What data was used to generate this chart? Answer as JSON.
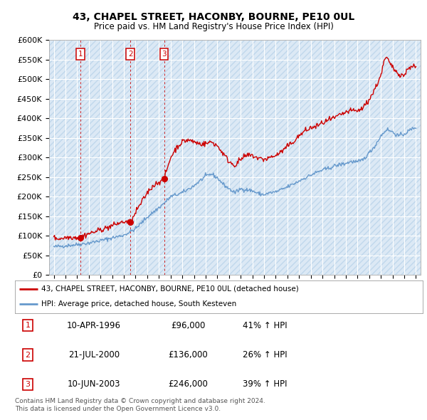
{
  "title": "43, CHAPEL STREET, HACONBY, BOURNE, PE10 0UL",
  "subtitle": "Price paid vs. HM Land Registry's House Price Index (HPI)",
  "legend_label_red": "43, CHAPEL STREET, HACONBY, BOURNE, PE10 0UL (detached house)",
  "legend_label_blue": "HPI: Average price, detached house, South Kesteven",
  "footer": "Contains HM Land Registry data © Crown copyright and database right 2024.\nThis data is licensed under the Open Government Licence v3.0.",
  "purchases": [
    {
      "label": "1",
      "date_num": 1996.27,
      "price": 96000,
      "date_str": "10-APR-1996",
      "pct": "41%",
      "dir": "↑"
    },
    {
      "label": "2",
      "date_num": 2000.55,
      "price": 136000,
      "date_str": "21-JUL-2000",
      "pct": "26%",
      "dir": "↑"
    },
    {
      "label": "3",
      "date_num": 2003.44,
      "price": 246000,
      "date_str": "10-JUN-2003",
      "pct": "39%",
      "dir": "↑"
    }
  ],
  "ylim": [
    0,
    600000
  ],
  "yticks": [
    0,
    50000,
    100000,
    150000,
    200000,
    250000,
    300000,
    350000,
    400000,
    450000,
    500000,
    550000,
    600000
  ],
  "xlim_start": 1993.6,
  "xlim_end": 2025.4,
  "background_color": "#dce9f5",
  "hatch_color": "#c0d8ec",
  "grid_color": "#ffffff",
  "red_color": "#cc0000",
  "blue_color": "#6699cc",
  "hpi_base": [
    [
      1994.0,
      72000
    ],
    [
      1995.0,
      75000
    ],
    [
      1996.0,
      78000
    ],
    [
      1997.0,
      82000
    ],
    [
      1998.0,
      88000
    ],
    [
      1999.0,
      95000
    ],
    [
      2000.0,
      102000
    ],
    [
      2001.0,
      118000
    ],
    [
      2002.0,
      148000
    ],
    [
      2003.0,
      172000
    ],
    [
      2003.5,
      185000
    ],
    [
      2004.0,
      200000
    ],
    [
      2005.0,
      210000
    ],
    [
      2006.0,
      228000
    ],
    [
      2007.0,
      252000
    ],
    [
      2007.5,
      258000
    ],
    [
      2008.0,
      248000
    ],
    [
      2008.5,
      232000
    ],
    [
      2009.0,
      220000
    ],
    [
      2009.5,
      210000
    ],
    [
      2010.0,
      220000
    ],
    [
      2010.5,
      218000
    ],
    [
      2011.0,
      215000
    ],
    [
      2011.5,
      208000
    ],
    [
      2012.0,
      205000
    ],
    [
      2012.5,
      210000
    ],
    [
      2013.0,
      212000
    ],
    [
      2013.5,
      218000
    ],
    [
      2014.0,
      225000
    ],
    [
      2014.5,
      232000
    ],
    [
      2015.0,
      240000
    ],
    [
      2015.5,
      248000
    ],
    [
      2016.0,
      255000
    ],
    [
      2016.5,
      262000
    ],
    [
      2017.0,
      268000
    ],
    [
      2017.5,
      272000
    ],
    [
      2018.0,
      278000
    ],
    [
      2018.5,
      282000
    ],
    [
      2019.0,
      285000
    ],
    [
      2019.5,
      290000
    ],
    [
      2020.0,
      288000
    ],
    [
      2020.5,
      295000
    ],
    [
      2021.0,
      312000
    ],
    [
      2021.5,
      330000
    ],
    [
      2022.0,
      355000
    ],
    [
      2022.5,
      372000
    ],
    [
      2023.0,
      365000
    ],
    [
      2023.5,
      355000
    ],
    [
      2024.0,
      360000
    ],
    [
      2024.5,
      370000
    ],
    [
      2025.0,
      378000
    ]
  ],
  "red_base": [
    [
      1994.0,
      95000
    ],
    [
      1994.5,
      93000
    ],
    [
      1995.0,
      96000
    ],
    [
      1995.5,
      97000
    ],
    [
      1996.0,
      96000
    ],
    [
      1996.27,
      96000
    ],
    [
      1996.5,
      100000
    ],
    [
      1997.0,
      106000
    ],
    [
      1997.5,
      110000
    ],
    [
      1998.0,
      116000
    ],
    [
      1998.5,
      120000
    ],
    [
      1999.0,
      126000
    ],
    [
      1999.5,
      132000
    ],
    [
      2000.0,
      136000
    ],
    [
      2000.55,
      136000
    ],
    [
      2000.8,
      145000
    ],
    [
      2001.0,
      160000
    ],
    [
      2001.5,
      185000
    ],
    [
      2002.0,
      210000
    ],
    [
      2002.5,
      228000
    ],
    [
      2003.0,
      238000
    ],
    [
      2003.44,
      246000
    ],
    [
      2003.8,
      280000
    ],
    [
      2004.0,
      300000
    ],
    [
      2004.5,
      325000
    ],
    [
      2005.0,
      340000
    ],
    [
      2005.5,
      345000
    ],
    [
      2006.0,
      340000
    ],
    [
      2006.5,
      335000
    ],
    [
      2007.0,
      335000
    ],
    [
      2007.5,
      340000
    ],
    [
      2008.0,
      330000
    ],
    [
      2008.5,
      310000
    ],
    [
      2009.0,
      290000
    ],
    [
      2009.5,
      280000
    ],
    [
      2010.0,
      295000
    ],
    [
      2010.5,
      305000
    ],
    [
      2011.0,
      305000
    ],
    [
      2011.5,
      298000
    ],
    [
      2012.0,
      295000
    ],
    [
      2012.5,
      300000
    ],
    [
      2013.0,
      305000
    ],
    [
      2013.5,
      315000
    ],
    [
      2014.0,
      328000
    ],
    [
      2014.5,
      340000
    ],
    [
      2015.0,
      355000
    ],
    [
      2015.5,
      368000
    ],
    [
      2016.0,
      375000
    ],
    [
      2016.5,
      380000
    ],
    [
      2017.0,
      388000
    ],
    [
      2017.5,
      395000
    ],
    [
      2018.0,
      400000
    ],
    [
      2018.5,
      408000
    ],
    [
      2019.0,
      415000
    ],
    [
      2019.5,
      420000
    ],
    [
      2020.0,
      418000
    ],
    [
      2020.5,
      428000
    ],
    [
      2021.0,
      448000
    ],
    [
      2021.5,
      475000
    ],
    [
      2022.0,
      510000
    ],
    [
      2022.3,
      548000
    ],
    [
      2022.5,
      555000
    ],
    [
      2022.8,
      538000
    ],
    [
      2023.0,
      530000
    ],
    [
      2023.3,
      520000
    ],
    [
      2023.5,
      515000
    ],
    [
      2023.8,
      510000
    ],
    [
      2024.0,
      510000
    ],
    [
      2024.3,
      525000
    ],
    [
      2024.6,
      535000
    ],
    [
      2025.0,
      530000
    ]
  ]
}
